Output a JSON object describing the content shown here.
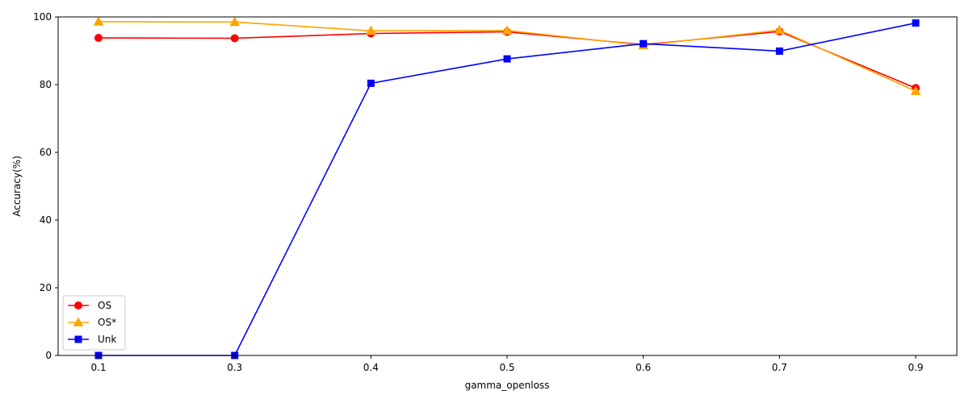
{
  "chart_data": {
    "type": "line",
    "xlabel": "gamma_openloss",
    "ylabel": "Accuracy(%)",
    "categories": [
      "0.1",
      "0.3",
      "0.4",
      "0.5",
      "0.6",
      "0.7",
      "0.9"
    ],
    "ylim": [
      0,
      100
    ],
    "yticks": [
      0,
      20,
      40,
      60,
      80,
      100
    ],
    "grid": false,
    "legend_position": "bottom-left",
    "series": [
      {
        "name": "OS",
        "color": "#ff0000",
        "marker": "circle",
        "values": [
          93.8,
          93.7,
          95.1,
          95.6,
          91.8,
          95.7,
          79.0
        ]
      },
      {
        "name": "OS*",
        "color": "#ffa500",
        "marker": "triangle",
        "values": [
          98.6,
          98.5,
          95.9,
          96.0,
          91.6,
          96.1,
          78.1
        ]
      },
      {
        "name": "Unk",
        "color": "#0000ff",
        "marker": "square",
        "values": [
          0.0,
          0.0,
          80.4,
          87.6,
          92.1,
          89.9,
          98.2
        ]
      }
    ]
  }
}
